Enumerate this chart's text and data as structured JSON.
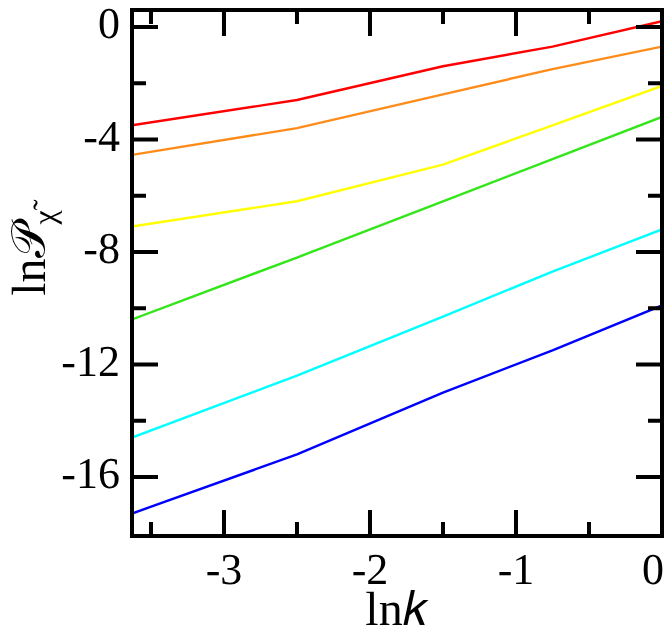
{
  "chart_data": {
    "type": "line",
    "xlabel": "ln𝑘",
    "ylabel": "ln𝒫$_{χ̃}$",
    "x": [
      -3.63,
      -2.5,
      -1.5,
      -0.75,
      0
    ],
    "series": [
      {
        "color": "#ff0000",
        "values": [
          -3.5,
          -2.6,
          -1.4,
          -0.7,
          0.2
        ]
      },
      {
        "color": "#ff8c1a",
        "values": [
          -4.55,
          -3.6,
          -2.4,
          -1.5,
          -0.7
        ]
      },
      {
        "color": "#ffff00",
        "values": [
          -7.1,
          -6.2,
          -4.9,
          -3.5,
          -2.1
        ]
      },
      {
        "color": "#33e61a",
        "values": [
          -10.4,
          -8.2,
          -6.2,
          -4.7,
          -3.2
        ]
      },
      {
        "color": "#00ffff",
        "values": [
          -14.6,
          -12.4,
          -10.3,
          -8.7,
          -7.2
        ]
      },
      {
        "color": "#0000ff",
        "values": [
          -17.3,
          -15.2,
          -13.0,
          -11.5,
          -9.9
        ]
      }
    ],
    "xlim": [
      -3.63,
      0
    ],
    "ylim": [
      -18.1,
      0.6
    ],
    "xticks": [
      {
        "value": -3.5,
        "label": null
      },
      -3,
      {
        "value": -2.5,
        "label": null
      },
      -2,
      {
        "value": -1.5,
        "label": null
      },
      -1,
      {
        "value": -0.5,
        "label": null
      },
      0
    ],
    "yticks": [
      -16,
      {
        "value": -14,
        "label": null
      },
      -12,
      {
        "value": -10,
        "label": null
      },
      -8,
      {
        "value": -6,
        "label": null
      },
      -4,
      {
        "value": -2,
        "label": null
      },
      0
    ],
    "grid": false,
    "legend": false,
    "marker": "none",
    "line_style": "solid"
  }
}
